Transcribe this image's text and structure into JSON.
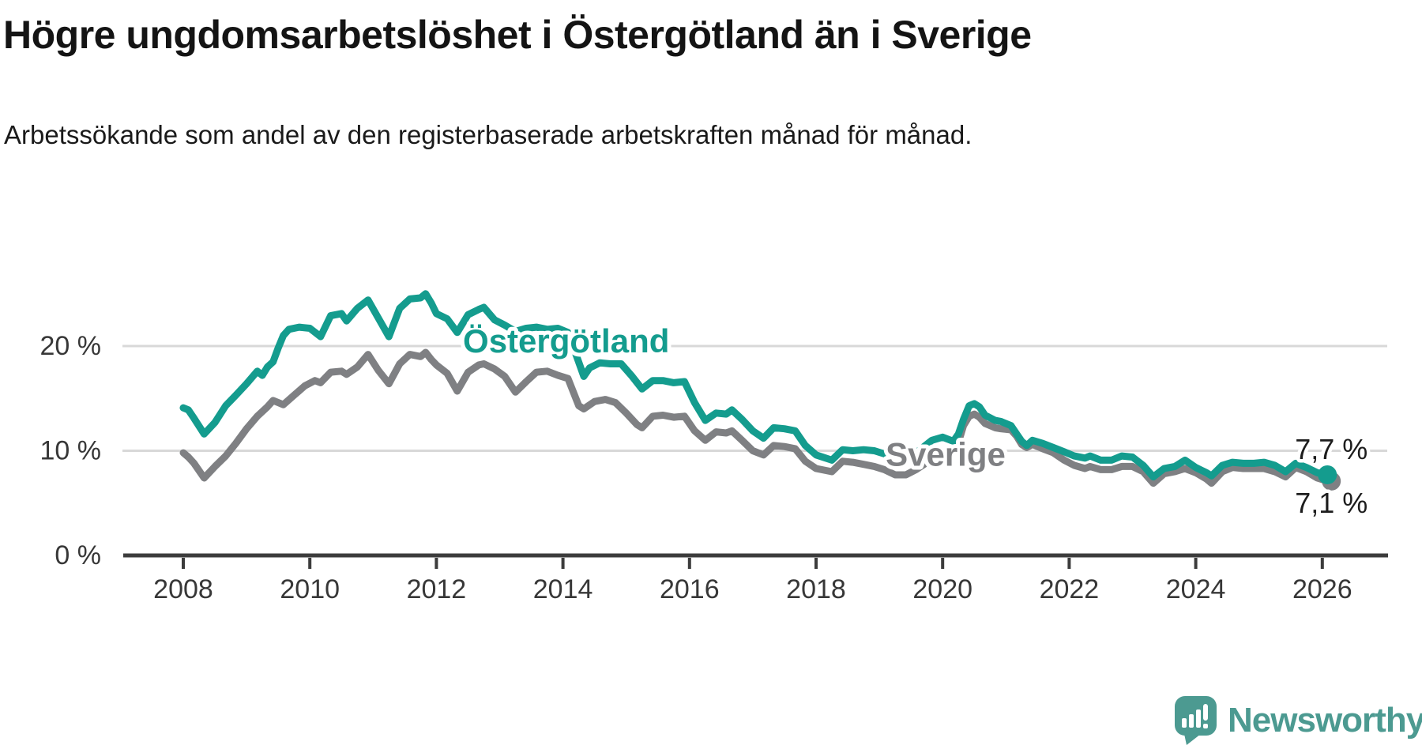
{
  "header": {
    "title": "Högre ungdomsarbetslöshet i Östergötland än i Sverige",
    "subtitle": "Arbetssökande som andel av den registerbaserade arbetskraften månad för månad."
  },
  "logo": {
    "text": "Newsworthy"
  },
  "chart_data": {
    "type": "line",
    "title": "Högre ungdomsarbetslöshet i Östergötland än i Sverige",
    "subtitle": "Arbetssökande som andel av den registerbaserade arbetskraften månad för månad.",
    "xlabel": "",
    "ylabel": "",
    "grid": "horizontal",
    "legend_position": "inline-labels",
    "xlim": [
      2007.05,
      2027.05
    ],
    "ylim": [
      0,
      27
    ],
    "x_axis": {
      "ticks": [
        2008,
        2010,
        2012,
        2014,
        2016,
        2018,
        2020,
        2022,
        2024,
        2026
      ]
    },
    "y_axis": {
      "ticks": [
        {
          "value": 0,
          "label": "0 %"
        },
        {
          "value": 10,
          "label": "10 %"
        },
        {
          "value": 20,
          "label": "20 %"
        }
      ]
    },
    "series": [
      {
        "name": "Östergötland",
        "color": "#149c8e",
        "label_at": [
          2012.42,
          20.5
        ],
        "end_label": "7,7 %",
        "end_label_side": "above",
        "end_dot": true,
        "points": [
          [
            2008.0,
            14.1
          ],
          [
            2008.08,
            13.9
          ],
          [
            2008.17,
            13.1
          ],
          [
            2008.33,
            11.6
          ],
          [
            2008.5,
            12.7
          ],
          [
            2008.67,
            14.3
          ],
          [
            2008.83,
            15.3
          ],
          [
            2009.0,
            16.4
          ],
          [
            2009.17,
            17.6
          ],
          [
            2009.25,
            17.2
          ],
          [
            2009.33,
            18.0
          ],
          [
            2009.42,
            18.5
          ],
          [
            2009.5,
            19.8
          ],
          [
            2009.58,
            21.0
          ],
          [
            2009.67,
            21.6
          ],
          [
            2009.83,
            21.8
          ],
          [
            2010.0,
            21.7
          ],
          [
            2010.17,
            20.9
          ],
          [
            2010.33,
            22.9
          ],
          [
            2010.5,
            23.1
          ],
          [
            2010.58,
            22.4
          ],
          [
            2010.75,
            23.6
          ],
          [
            2010.92,
            24.4
          ],
          [
            2011.08,
            22.7
          ],
          [
            2011.25,
            20.9
          ],
          [
            2011.42,
            23.6
          ],
          [
            2011.58,
            24.5
          ],
          [
            2011.75,
            24.6
          ],
          [
            2011.83,
            25.0
          ],
          [
            2011.92,
            24.1
          ],
          [
            2012.0,
            23.1
          ],
          [
            2012.17,
            22.6
          ],
          [
            2012.33,
            21.3
          ],
          [
            2012.5,
            23.0
          ],
          [
            2012.67,
            23.5
          ],
          [
            2012.75,
            23.7
          ],
          [
            2012.92,
            22.5
          ],
          [
            2013.08,
            22.0
          ],
          [
            2013.25,
            21.4
          ],
          [
            2013.42,
            21.7
          ],
          [
            2013.58,
            21.8
          ],
          [
            2013.75,
            21.6
          ],
          [
            2013.92,
            21.7
          ],
          [
            2014.08,
            21.3
          ],
          [
            2014.17,
            19.8
          ],
          [
            2014.33,
            17.1
          ],
          [
            2014.42,
            17.9
          ],
          [
            2014.58,
            18.4
          ],
          [
            2014.75,
            18.3
          ],
          [
            2014.92,
            18.3
          ],
          [
            2015.08,
            17.2
          ],
          [
            2015.25,
            15.9
          ],
          [
            2015.42,
            16.7
          ],
          [
            2015.58,
            16.7
          ],
          [
            2015.75,
            16.5
          ],
          [
            2015.92,
            16.6
          ],
          [
            2016.08,
            14.6
          ],
          [
            2016.25,
            12.9
          ],
          [
            2016.42,
            13.6
          ],
          [
            2016.58,
            13.5
          ],
          [
            2016.67,
            13.9
          ],
          [
            2016.83,
            13.0
          ],
          [
            2017.0,
            11.9
          ],
          [
            2017.17,
            11.2
          ],
          [
            2017.33,
            12.2
          ],
          [
            2017.5,
            12.1
          ],
          [
            2017.67,
            11.9
          ],
          [
            2017.83,
            10.5
          ],
          [
            2018.0,
            9.6
          ],
          [
            2018.25,
            9.1
          ],
          [
            2018.42,
            10.1
          ],
          [
            2018.58,
            10.0
          ],
          [
            2018.75,
            10.1
          ],
          [
            2018.92,
            10.0
          ],
          [
            2019.08,
            9.7
          ],
          [
            2019.33,
            9.3
          ],
          [
            2019.58,
            9.8
          ],
          [
            2019.83,
            11.0
          ],
          [
            2020.0,
            11.3
          ],
          [
            2020.17,
            10.9
          ],
          [
            2020.25,
            11.6
          ],
          [
            2020.33,
            13.0
          ],
          [
            2020.42,
            14.3
          ],
          [
            2020.5,
            14.5
          ],
          [
            2020.58,
            14.2
          ],
          [
            2020.67,
            13.4
          ],
          [
            2020.83,
            12.9
          ],
          [
            2020.92,
            12.8
          ],
          [
            2021.08,
            12.4
          ],
          [
            2021.17,
            11.6
          ],
          [
            2021.25,
            10.9
          ],
          [
            2021.33,
            10.5
          ],
          [
            2021.42,
            11.0
          ],
          [
            2021.58,
            10.7
          ],
          [
            2021.75,
            10.3
          ],
          [
            2021.92,
            9.9
          ],
          [
            2022.08,
            9.5
          ],
          [
            2022.25,
            9.3
          ],
          [
            2022.33,
            9.5
          ],
          [
            2022.5,
            9.1
          ],
          [
            2022.67,
            9.1
          ],
          [
            2022.83,
            9.5
          ],
          [
            2023.0,
            9.4
          ],
          [
            2023.17,
            8.6
          ],
          [
            2023.33,
            7.5
          ],
          [
            2023.5,
            8.3
          ],
          [
            2023.67,
            8.5
          ],
          [
            2023.83,
            9.1
          ],
          [
            2024.0,
            8.4
          ],
          [
            2024.17,
            7.9
          ],
          [
            2024.25,
            7.6
          ],
          [
            2024.42,
            8.6
          ],
          [
            2024.58,
            8.9
          ],
          [
            2024.75,
            8.8
          ],
          [
            2024.92,
            8.8
          ],
          [
            2025.08,
            8.9
          ],
          [
            2025.25,
            8.6
          ],
          [
            2025.42,
            8.0
          ],
          [
            2025.58,
            8.8
          ],
          [
            2025.75,
            8.4
          ],
          [
            2025.92,
            7.9
          ],
          [
            2026.08,
            7.7
          ]
        ]
      },
      {
        "name": "Sverige",
        "color": "#7f8083",
        "label_at": [
          2019.1,
          9.65
        ],
        "end_label": "7,1 %",
        "end_label_side": "below",
        "end_dot": true,
        "points": [
          [
            2008.0,
            9.8
          ],
          [
            2008.08,
            9.4
          ],
          [
            2008.17,
            8.8
          ],
          [
            2008.33,
            7.4
          ],
          [
            2008.5,
            8.5
          ],
          [
            2008.67,
            9.5
          ],
          [
            2008.83,
            10.7
          ],
          [
            2009.0,
            12.1
          ],
          [
            2009.17,
            13.3
          ],
          [
            2009.33,
            14.2
          ],
          [
            2009.42,
            14.8
          ],
          [
            2009.58,
            14.4
          ],
          [
            2009.75,
            15.3
          ],
          [
            2009.92,
            16.2
          ],
          [
            2010.08,
            16.7
          ],
          [
            2010.17,
            16.5
          ],
          [
            2010.33,
            17.5
          ],
          [
            2010.5,
            17.6
          ],
          [
            2010.58,
            17.3
          ],
          [
            2010.75,
            18.0
          ],
          [
            2010.92,
            19.2
          ],
          [
            2011.08,
            17.7
          ],
          [
            2011.25,
            16.4
          ],
          [
            2011.42,
            18.3
          ],
          [
            2011.58,
            19.2
          ],
          [
            2011.75,
            19.0
          ],
          [
            2011.83,
            19.4
          ],
          [
            2011.92,
            18.7
          ],
          [
            2012.0,
            18.2
          ],
          [
            2012.17,
            17.4
          ],
          [
            2012.33,
            15.7
          ],
          [
            2012.5,
            17.5
          ],
          [
            2012.67,
            18.2
          ],
          [
            2012.75,
            18.3
          ],
          [
            2012.92,
            17.8
          ],
          [
            2013.08,
            17.1
          ],
          [
            2013.25,
            15.6
          ],
          [
            2013.42,
            16.6
          ],
          [
            2013.58,
            17.5
          ],
          [
            2013.75,
            17.6
          ],
          [
            2013.92,
            17.2
          ],
          [
            2014.08,
            16.9
          ],
          [
            2014.25,
            14.3
          ],
          [
            2014.33,
            14.0
          ],
          [
            2014.5,
            14.7
          ],
          [
            2014.67,
            14.9
          ],
          [
            2014.83,
            14.6
          ],
          [
            2015.0,
            13.6
          ],
          [
            2015.17,
            12.5
          ],
          [
            2015.25,
            12.2
          ],
          [
            2015.42,
            13.3
          ],
          [
            2015.58,
            13.4
          ],
          [
            2015.75,
            13.2
          ],
          [
            2015.92,
            13.3
          ],
          [
            2016.08,
            11.9
          ],
          [
            2016.25,
            11.0
          ],
          [
            2016.42,
            11.8
          ],
          [
            2016.58,
            11.7
          ],
          [
            2016.67,
            11.9
          ],
          [
            2016.83,
            11.0
          ],
          [
            2017.0,
            10.0
          ],
          [
            2017.17,
            9.6
          ],
          [
            2017.33,
            10.5
          ],
          [
            2017.5,
            10.4
          ],
          [
            2017.67,
            10.2
          ],
          [
            2017.83,
            9.0
          ],
          [
            2018.0,
            8.3
          ],
          [
            2018.25,
            8.0
          ],
          [
            2018.42,
            9.0
          ],
          [
            2018.58,
            8.9
          ],
          [
            2018.75,
            8.7
          ],
          [
            2018.92,
            8.5
          ],
          [
            2019.08,
            8.2
          ],
          [
            2019.25,
            7.7
          ],
          [
            2019.42,
            7.7
          ],
          [
            2019.58,
            8.2
          ],
          [
            2019.83,
            9.2
          ],
          [
            2020.0,
            9.8
          ],
          [
            2020.17,
            10.0
          ],
          [
            2020.25,
            10.8
          ],
          [
            2020.33,
            12.4
          ],
          [
            2020.42,
            13.3
          ],
          [
            2020.5,
            13.5
          ],
          [
            2020.58,
            13.2
          ],
          [
            2020.67,
            12.6
          ],
          [
            2020.83,
            12.2
          ],
          [
            2020.92,
            12.1
          ],
          [
            2021.08,
            12.0
          ],
          [
            2021.17,
            11.4
          ],
          [
            2021.25,
            10.6
          ],
          [
            2021.33,
            10.3
          ],
          [
            2021.42,
            10.6
          ],
          [
            2021.58,
            10.2
          ],
          [
            2021.75,
            9.8
          ],
          [
            2021.92,
            9.1
          ],
          [
            2022.08,
            8.6
          ],
          [
            2022.25,
            8.3
          ],
          [
            2022.33,
            8.5
          ],
          [
            2022.5,
            8.2
          ],
          [
            2022.67,
            8.2
          ],
          [
            2022.83,
            8.5
          ],
          [
            2023.0,
            8.5
          ],
          [
            2023.17,
            8.0
          ],
          [
            2023.33,
            6.9
          ],
          [
            2023.5,
            7.8
          ],
          [
            2023.67,
            8.0
          ],
          [
            2023.83,
            8.3
          ],
          [
            2024.0,
            7.9
          ],
          [
            2024.17,
            7.3
          ],
          [
            2024.25,
            6.9
          ],
          [
            2024.42,
            8.0
          ],
          [
            2024.58,
            8.4
          ],
          [
            2024.75,
            8.3
          ],
          [
            2024.92,
            8.3
          ],
          [
            2025.08,
            8.3
          ],
          [
            2025.25,
            8.0
          ],
          [
            2025.42,
            7.5
          ],
          [
            2025.58,
            8.4
          ],
          [
            2025.75,
            8.0
          ],
          [
            2025.92,
            7.4
          ],
          [
            2026.08,
            7.1
          ]
        ]
      }
    ]
  }
}
